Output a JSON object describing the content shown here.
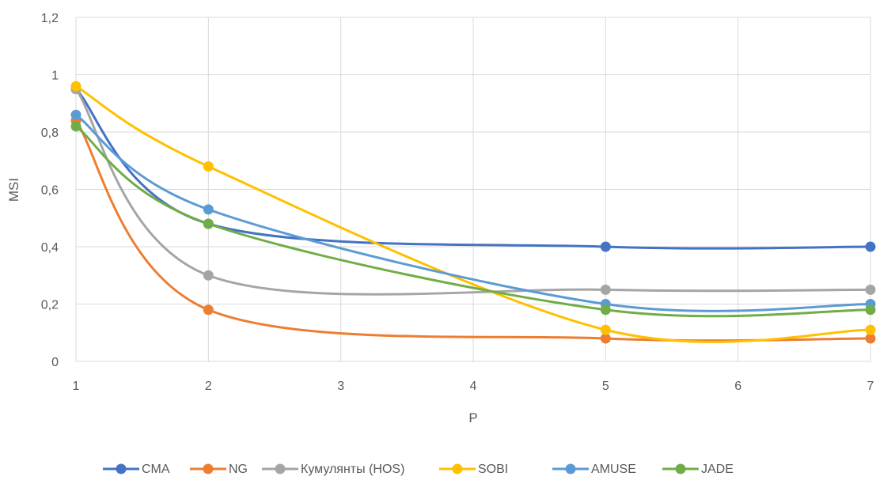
{
  "chart_data": {
    "type": "line",
    "smooth": true,
    "x": [
      1,
      2,
      5,
      7
    ],
    "xlim": [
      1,
      7
    ],
    "ylim": [
      0,
      1.2
    ],
    "x_ticks": [
      "1",
      "2",
      "3",
      "4",
      "5",
      "6",
      "7"
    ],
    "y_ticks": [
      "0",
      "0,2",
      "0,4",
      "0,6",
      "0,8",
      "1",
      "1,2"
    ],
    "xlabel": "P",
    "ylabel": "MSI",
    "grid": "vertical and horizontal",
    "legend_position": "bottom",
    "series": [
      {
        "name": "CMA",
        "color": "#4472C4",
        "values": [
          0.95,
          0.48,
          0.4,
          0.4
        ]
      },
      {
        "name": "NG",
        "color": "#ED7D31",
        "values": [
          0.84,
          0.18,
          0.08,
          0.08
        ]
      },
      {
        "name": "Кумулянты (HOS)",
        "color": "#A5A5A5",
        "values": [
          0.95,
          0.3,
          0.25,
          0.25
        ]
      },
      {
        "name": "SOBI",
        "color": "#FFC000",
        "values": [
          0.96,
          0.68,
          0.11,
          0.11
        ]
      },
      {
        "name": "AMUSE",
        "color": "#5B9BD5",
        "values": [
          0.86,
          0.53,
          0.2,
          0.2
        ]
      },
      {
        "name": "JADE",
        "color": "#70AD47",
        "values": [
          0.82,
          0.48,
          0.18,
          0.18
        ]
      }
    ]
  }
}
